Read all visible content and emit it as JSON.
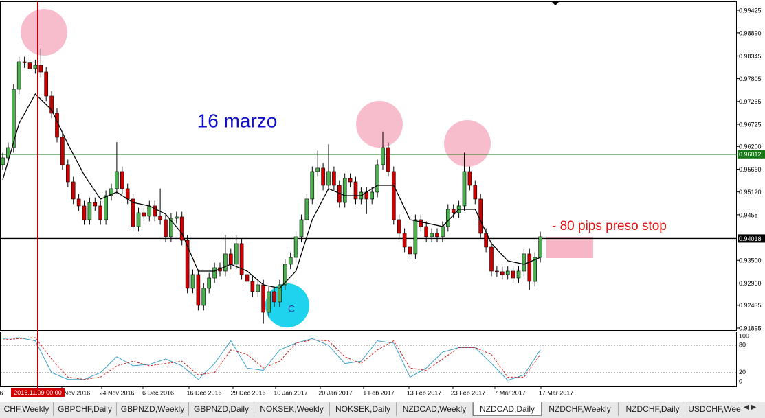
{
  "chart_data": {
    "type": "candlestick",
    "ylim": [
      0.91862,
      0.9962
    ],
    "yticks": [
      0.99425,
      {
        "value": 0.9889,
        "label": "0.98890"
      },
      0.98345,
      0.97805,
      0.97265,
      0.96725,
      {
        "value": 0.962,
        "label": "0.96200"
      },
      {
        "value": 0.9566,
        "label": "0.95660"
      },
      {
        "value": 0.9512,
        "label": "0.95120"
      },
      0.9458,
      {
        "value": 0.935,
        "label": "0.93500"
      },
      {
        "value": 0.9296,
        "label": "0.92960"
      },
      0.92435,
      0.91895
    ],
    "open": [
      0.95766,
      0.95929,
      0.96172,
      0.97555,
      0.98205,
      0.9818,
      0.98043,
      0.98124,
      0.97961,
      0.97392,
      0.96986,
      0.96416,
      0.95766,
      0.95359,
      0.94953,
      0.9479,
      0.94465,
      0.94871,
      0.9479,
      0.94465,
      0.95034,
      0.95197,
      0.95603,
      0.95197,
      0.94953,
      0.94302,
      0.94627,
      0.94546,
      0.9479,
      0.94546,
      0.94465,
      0.94058,
      0.94497,
      0.9453,
      0.93977,
      0.92839,
      0.93164,
      0.92432,
      0.92839,
      0.93082,
      0.93326,
      0.93245,
      0.93652,
      0.93408,
      0.93896,
      0.93164,
      0.93001,
      0.92757,
      0.9292,
      0.92269,
      0.92757,
      0.92513,
      0.9292,
      0.93408,
      0.9357,
      0.94058,
      0.94465,
      0.94953,
      0.95603,
      0.95685,
      0.95278,
      0.95603,
      0.95278,
      0.94871,
      0.95441,
      0.95359,
      0.94953,
      0.95115,
      0.94953,
      0.95115,
      0.95766,
      0.96172,
      0.95603,
      0.94465,
      0.9414,
      0.93814,
      0.93652,
      0.94465,
      0.94302,
      0.94058,
      0.9414,
      0.94058,
      0.94302,
      0.94709,
      0.94627,
      0.9479,
      0.95603,
      0.95278,
      0.94953,
      0.9414,
      0.93814,
      0.93245,
      0.9323,
      0.93164,
      0.93245,
      0.93082,
      0.93245,
      0.93652,
      0.93001,
      0.9357
    ],
    "high": [
      0.96049,
      0.96292,
      0.97675,
      0.98325,
      0.98325,
      0.983,
      0.98244,
      0.9852,
      0.98081,
      0.97512,
      0.97106,
      0.96536,
      0.95886,
      0.95479,
      0.95073,
      0.9491,
      0.94991,
      0.94991,
      0.9491,
      0.95154,
      0.95317,
      0.963,
      0.95723,
      0.95317,
      0.95073,
      0.94747,
      0.94747,
      0.9491,
      0.9491,
      0.952,
      0.94585,
      0.94617,
      0.9465,
      0.9465,
      0.94097,
      0.93284,
      0.93284,
      0.92959,
      0.93202,
      0.93446,
      0.93446,
      0.941,
      0.93772,
      0.941,
      0.94016,
      0.93284,
      0.93121,
      0.9304,
      0.9304,
      0.92877,
      0.92877,
      0.9304,
      0.93528,
      0.9369,
      0.94178,
      0.94585,
      0.95073,
      0.95723,
      0.961,
      0.95805,
      0.9625,
      0.95723,
      0.95398,
      0.95561,
      0.95561,
      0.95479,
      0.95235,
      0.95235,
      0.95235,
      0.95886,
      0.9655,
      0.96292,
      0.95723,
      0.94585,
      0.9426,
      0.93934,
      0.94585,
      0.94585,
      0.94422,
      0.9426,
      0.9426,
      0.94422,
      0.94829,
      0.94829,
      0.9491,
      0.9605,
      0.95723,
      0.95398,
      0.95073,
      0.9426,
      0.93934,
      0.93365,
      0.9335,
      0.93365,
      0.93365,
      0.93365,
      0.93772,
      0.93772,
      0.9369,
      0.94178
    ],
    "low": [
      0.95646,
      0.95809,
      0.96052,
      0.97435,
      0.9806,
      0.97923,
      0.97923,
      0.97841,
      0.97272,
      0.96866,
      0.96296,
      0.95646,
      0.95239,
      0.94833,
      0.9467,
      0.94345,
      0.94345,
      0.9467,
      0.94345,
      0.94345,
      0.94914,
      0.95077,
      0.95077,
      0.94833,
      0.94182,
      0.94182,
      0.94426,
      0.94426,
      0.94426,
      0.94345,
      0.93938,
      0.93938,
      0.94377,
      0.93857,
      0.92719,
      0.92719,
      0.92312,
      0.92312,
      0.92719,
      0.92962,
      0.93125,
      0.93125,
      0.93288,
      0.93288,
      0.93044,
      0.92881,
      0.92637,
      0.92637,
      0.92,
      0.92149,
      0.92393,
      0.92393,
      0.928,
      0.93288,
      0.9345,
      0.93938,
      0.94345,
      0.94833,
      0.95483,
      0.95158,
      0.95158,
      0.95158,
      0.94751,
      0.94751,
      0.95239,
      0.94833,
      0.94833,
      0.946,
      0.94833,
      0.94995,
      0.95646,
      0.95483,
      0.94345,
      0.9402,
      0.93694,
      0.93532,
      0.93532,
      0.94182,
      0.93938,
      0.93938,
      0.93938,
      0.93938,
      0.94182,
      0.94507,
      0.94507,
      0.9467,
      0.95158,
      0.94833,
      0.9402,
      0.93694,
      0.93125,
      0.9311,
      0.93044,
      0.93044,
      0.92962,
      0.92962,
      0.93125,
      0.928,
      0.92881,
      0.9345
    ],
    "close": [
      0.95929,
      0.96172,
      0.97555,
      0.98205,
      0.9818,
      0.98043,
      0.98124,
      0.97961,
      0.97392,
      0.96986,
      0.96416,
      0.95766,
      0.95359,
      0.94953,
      0.9479,
      0.94465,
      0.94871,
      0.9479,
      0.94465,
      0.95034,
      0.95197,
      0.95603,
      0.95197,
      0.94953,
      0.94302,
      0.94627,
      0.94546,
      0.9479,
      0.94546,
      0.94465,
      0.94058,
      0.94497,
      0.9453,
      0.93977,
      0.92839,
      0.93164,
      0.92432,
      0.92839,
      0.93082,
      0.93326,
      0.93245,
      0.93652,
      0.93408,
      0.93896,
      0.93164,
      0.93001,
      0.92757,
      0.9292,
      0.92269,
      0.92757,
      0.92513,
      0.9292,
      0.93408,
      0.9357,
      0.94058,
      0.94465,
      0.94953,
      0.95603,
      0.95685,
      0.95278,
      0.95603,
      0.95278,
      0.94871,
      0.95441,
      0.95359,
      0.94953,
      0.95115,
      0.94953,
      0.95115,
      0.95766,
      0.96172,
      0.95603,
      0.94465,
      0.9414,
      0.93814,
      0.93652,
      0.94465,
      0.94302,
      0.94058,
      0.9414,
      0.94058,
      0.94302,
      0.94709,
      0.94627,
      0.9479,
      0.95603,
      0.95278,
      0.94953,
      0.9414,
      0.93814,
      0.93245,
      0.9323,
      0.93164,
      0.93245,
      0.93082,
      0.93245,
      0.93652,
      0.93001,
      0.9357,
      0.94058
    ],
    "up_color": "#4caf50",
    "down_color": "#cc0000",
    "moving_average": {
      "color": "#000000",
      "x": [
        0,
        3,
        6,
        9,
        12,
        15,
        18,
        21,
        24,
        27,
        30,
        33,
        36,
        39,
        42,
        45,
        48,
        51,
        54,
        57,
        60,
        63,
        66,
        69,
        72,
        75,
        78,
        81,
        84,
        87,
        90,
        93,
        96,
        99
      ],
      "values": [
        0.95408,
        0.96742,
        0.97441,
        0.97067,
        0.96254,
        0.95522,
        0.94953,
        0.95115,
        0.94871,
        0.9479,
        0.94595,
        0.9414,
        0.93245,
        0.93245,
        0.93408,
        0.93245,
        0.9292,
        0.92839,
        0.93245,
        0.94465,
        0.95197,
        0.95034,
        0.95034,
        0.95278,
        0.95278,
        0.94465,
        0.94384,
        0.94302,
        0.94709,
        0.94709,
        0.93896,
        0.93489,
        0.93408,
        0.9357
      ]
    },
    "hlines": [
      {
        "value": 0.96012,
        "color": "#1a7a1a"
      },
      {
        "value": 0.94018,
        "color": "#000000"
      }
    ],
    "vline_label": "2016.11.09 00:00",
    "x_labels": [
      "6",
      "Nov 2016",
      "24 Nov 2016",
      "6 Dec 2016",
      "16 Dec 2016",
      "29 Dec 2016",
      "10 Jan 2017",
      "20 Jan 2017",
      "1 Feb 2017",
      "13 Feb 2017",
      "23 Feb 2017",
      "7 Mar 2017",
      "17 Mar 2017"
    ],
    "annotation_title": "16 marzo",
    "annotation_stop": "- 80 pips preso stop",
    "annotation_c": "C",
    "stochastic": {
      "ylim": [
        -10.6,
        109.1
      ],
      "yticks": [
        100,
        80,
        20,
        0
      ],
      "x": [
        0,
        3,
        6,
        9,
        12,
        15,
        18,
        21,
        24,
        27,
        30,
        33,
        36,
        39,
        42,
        45,
        48,
        51,
        54,
        57,
        60,
        63,
        66,
        69,
        72,
        75,
        78,
        81,
        84,
        87,
        90,
        93,
        96,
        99
      ],
      "main": [
        95,
        97,
        90,
        20,
        5,
        5,
        20,
        55,
        35,
        38,
        50,
        35,
        5,
        40,
        90,
        30,
        25,
        70,
        85,
        95,
        80,
        40,
        45,
        90,
        85,
        10,
        30,
        65,
        75,
        75,
        40,
        3,
        15,
        70
      ],
      "signal": [
        92,
        95,
        97,
        50,
        10,
        5,
        10,
        35,
        45,
        35,
        40,
        45,
        15,
        20,
        70,
        60,
        30,
        45,
        85,
        92,
        90,
        55,
        40,
        70,
        90,
        30,
        25,
        50,
        75,
        75,
        60,
        10,
        10,
        60
      ],
      "main_color": "#3aa0c8",
      "signal_color": "#d02020"
    }
  },
  "tabs": [
    "CHF,Weekly",
    "GBPCHF,Daily",
    "GBPNZD,Weekly",
    "GBPNZD,Daily",
    "NOKSEK,Weekly",
    "NOKSEK,Daily",
    "NZDCAD,Weekly",
    "NZDCAD,Daily",
    "NZDCHF,Weekly",
    "NZDCHF,Daily",
    "USDCHF,Wee"
  ]
}
